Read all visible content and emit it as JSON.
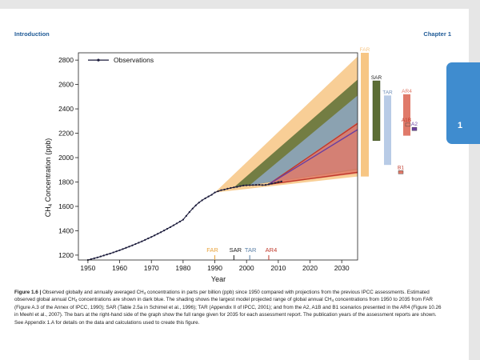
{
  "header": {
    "section": "Introduction",
    "chapter": "Chapter 1"
  },
  "side_tab": {
    "label": "1"
  },
  "caption": {
    "figure_label": "Figure 1.6 |",
    "text_1": " Observed globally and annually averaged CH",
    "text_2": " concentrations in parts per billion (ppb) since 1950 compared with projections from the previous IPCC assessments. Estimated observed global annual CH",
    "text_3": " concentrations are shown in dark blue. The shading shows the largest model projected range of global annual CH",
    "text_4": " concentrations from 1950 to 2035 from FAR (Figure A.3 of the Annex of IPCC, 1990); SAR (Table 2.5a in Schimel et al., 1996); TAR (Appendix II of IPCC, 2001); and from the A2, A1B and B1 scenarios presented in the AR4 (Figure 10.26 in Meehl et al., 2007). The bars at the right-hand side of the graph show the full range given for 2035 for each assessment report. The publication years of the assessment reports are shown. See Appendix 1.A for details on the data and calculations used to create this figure.",
    "subscript": "4"
  },
  "chart_data": {
    "type": "line",
    "xlabel": "Year",
    "ylabel": "CH",
    "ylabel_sub": "4",
    "ylabel_rest": " Concentration (ppb)",
    "xlim": [
      1947,
      2035
    ],
    "ylim": [
      1160,
      2860
    ],
    "x_ticks": [
      1950,
      1960,
      1970,
      1980,
      1990,
      2000,
      2010,
      2020,
      2030
    ],
    "y_ticks": [
      1200,
      1400,
      1600,
      1800,
      2000,
      2200,
      2400,
      2600,
      2800
    ],
    "legend": {
      "label": "Observations",
      "position": "top-left"
    },
    "observations": {
      "name": "Observations",
      "color": "#1a1a3a",
      "x": [
        1950,
        1951,
        1952,
        1953,
        1954,
        1955,
        1956,
        1957,
        1958,
        1959,
        1960,
        1961,
        1962,
        1963,
        1964,
        1965,
        1966,
        1967,
        1968,
        1969,
        1970,
        1971,
        1972,
        1973,
        1974,
        1975,
        1976,
        1977,
        1978,
        1979,
        1980,
        1981,
        1982,
        1983,
        1984,
        1985,
        1986,
        1987,
        1988,
        1989,
        1990,
        1991,
        1992,
        1993,
        1994,
        1995,
        1996,
        1997,
        1998,
        1999,
        2000,
        2001,
        2002,
        2003,
        2004,
        2005,
        2006,
        2007,
        2008,
        2009,
        2010,
        2011
      ],
      "y": [
        1160,
        1167,
        1174,
        1181,
        1189,
        1197,
        1205,
        1213,
        1222,
        1231,
        1240,
        1250,
        1260,
        1270,
        1280,
        1291,
        1302,
        1313,
        1325,
        1337,
        1349,
        1362,
        1375,
        1388,
        1402,
        1416,
        1430,
        1445,
        1460,
        1475,
        1491,
        1522,
        1553,
        1582,
        1608,
        1631,
        1650,
        1666,
        1681,
        1695,
        1714,
        1724,
        1733,
        1738,
        1745,
        1751,
        1756,
        1760,
        1766,
        1771,
        1773,
        1774,
        1775,
        1776,
        1777,
        1775,
        1776,
        1781,
        1787,
        1793,
        1799,
        1804
      ]
    },
    "projection_ranges": [
      {
        "name": "FAR",
        "color": "#f7c684",
        "x": [
          1990,
          2035
        ],
        "upper": [
          1714,
          2830
        ],
        "lower": [
          1714,
          1845
        ]
      },
      {
        "name": "SAR",
        "color": "#5c6e35",
        "x": [
          1996,
          2035
        ],
        "upper": [
          1756,
          2640
        ],
        "lower": [
          1756,
          1900
        ]
      },
      {
        "name": "TAR",
        "color": "#8fa8c4",
        "x": [
          2001,
          2035
        ],
        "upper": [
          1774,
          2510
        ],
        "lower": [
          1774,
          1910
        ]
      },
      {
        "name": "AR4",
        "color": "#e07a6a",
        "x": [
          2007,
          2035
        ],
        "upper": [
          1781,
          2290
        ],
        "lower": [
          1781,
          1870
        ]
      }
    ],
    "scenario_lines": [
      {
        "name": "A1B",
        "color": "#c0392b",
        "x": [
          2007,
          2035
        ],
        "y": [
          1781,
          2280
        ]
      },
      {
        "name": "A2",
        "color": "#6b3fa0",
        "x": [
          2007,
          2035
        ],
        "y": [
          1781,
          2230
        ]
      },
      {
        "name": "B1",
        "color": "#c0392b",
        "x": [
          2007,
          2035
        ],
        "y": [
          1781,
          1880
        ]
      }
    ],
    "range_bars_2035": [
      {
        "name": "FAR",
        "color": "#f7c684",
        "low": 1845,
        "high": 2860
      },
      {
        "name": "SAR",
        "color": "#5c6e35",
        "low": 2140,
        "high": 2630
      },
      {
        "name": "TAR",
        "color": "#b8cbe6",
        "low": 1940,
        "high": 2510
      },
      {
        "name": "AR4",
        "color": "#e07a6a",
        "low": 2180,
        "high": 2520
      }
    ],
    "scenario_markers_2035": [
      {
        "name": "A1B",
        "color": "#e07a6a",
        "value": 2270
      },
      {
        "name": "A2",
        "color": "#6b3fa0",
        "value": 2235
      },
      {
        "name": "B1",
        "color": "#e07a6a",
        "value": 1880
      }
    ],
    "publication_years": [
      {
        "name": "FAR",
        "year": 1990,
        "color": "#e8a23a"
      },
      {
        "name": "SAR",
        "year": 1996,
        "color": "#1a1a1a"
      },
      {
        "name": "TAR",
        "year": 2001,
        "color": "#5a7fa6"
      },
      {
        "name": "AR4",
        "year": 2007,
        "color": "#c0392b"
      }
    ]
  }
}
